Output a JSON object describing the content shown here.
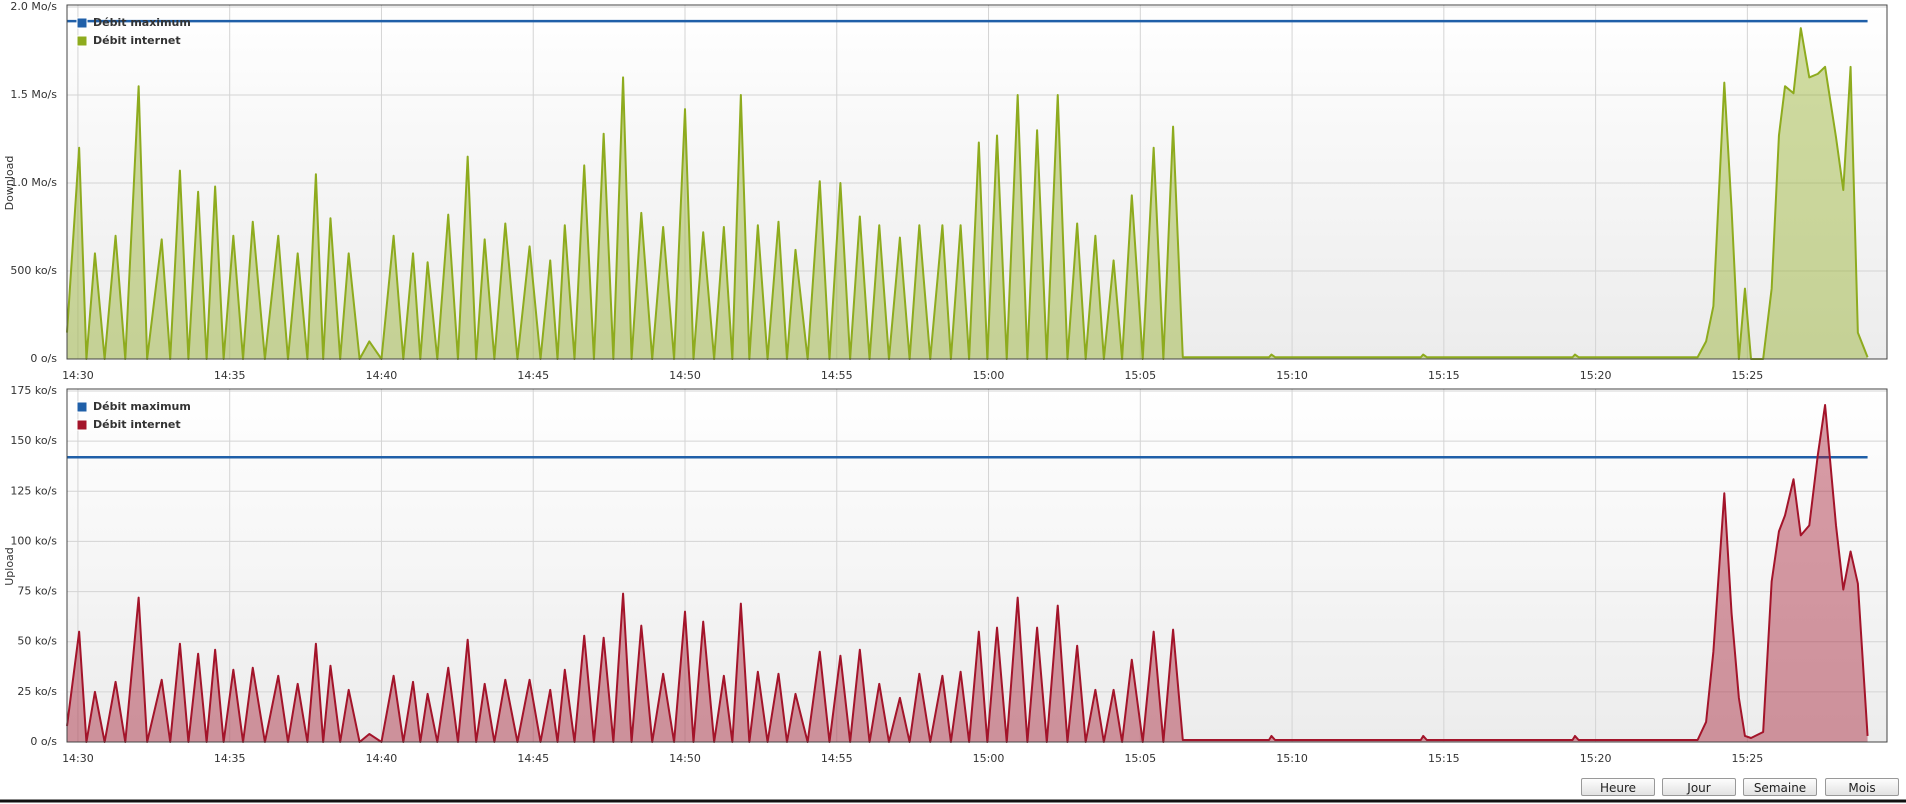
{
  "chart_data": [
    {
      "type": "area",
      "ylabel": "Download",
      "grid": true,
      "legend": "top-left",
      "xlim": [
        869.64,
        929.6
      ],
      "xticks": [
        {
          "value": 870,
          "label": "14:30"
        },
        {
          "value": 875,
          "label": "14:35"
        },
        {
          "value": 880,
          "label": "14:40"
        },
        {
          "value": 885,
          "label": "14:45"
        },
        {
          "value": 890,
          "label": "14:50"
        },
        {
          "value": 895,
          "label": "14:55"
        },
        {
          "value": 900,
          "label": "15:00"
        },
        {
          "value": 905,
          "label": "15:05"
        },
        {
          "value": 910,
          "label": "15:10"
        },
        {
          "value": 915,
          "label": "15:15"
        },
        {
          "value": 920,
          "label": "15:20"
        },
        {
          "value": 925,
          "label": "15:25"
        }
      ],
      "ylim": [
        0,
        2000
      ],
      "yticks": [
        {
          "value": 0,
          "label": "0 o/s"
        },
        {
          "value": 500,
          "label": "500 ko/s"
        },
        {
          "value": 1000,
          "label": "1.0 Mo/s"
        },
        {
          "value": 1500,
          "label": "1.5 Mo/s"
        },
        {
          "value": 2000,
          "label": "2.0 Mo/s"
        }
      ],
      "x": [
        869.64,
        870.04,
        870.28,
        870.56,
        870.88,
        871.24,
        871.56,
        872.0,
        872.28,
        872.76,
        873.04,
        873.36,
        873.64,
        873.96,
        874.24,
        874.52,
        874.8,
        875.12,
        875.44,
        875.76,
        876.16,
        876.6,
        876.92,
        877.24,
        877.56,
        877.84,
        878.08,
        878.32,
        878.64,
        878.92,
        879.28,
        879.6,
        880.0,
        880.4,
        880.72,
        881.04,
        881.28,
        881.52,
        881.84,
        882.2,
        882.52,
        882.84,
        883.12,
        883.4,
        883.72,
        884.08,
        884.48,
        884.88,
        885.24,
        885.56,
        885.8,
        886.04,
        886.36,
        886.68,
        887.0,
        887.32,
        887.64,
        887.96,
        888.24,
        888.56,
        888.92,
        889.28,
        889.64,
        890.0,
        890.28,
        890.6,
        890.96,
        891.28,
        891.56,
        891.84,
        892.12,
        892.4,
        892.72,
        893.08,
        893.36,
        893.64,
        894.04,
        894.44,
        894.76,
        895.12,
        895.44,
        895.76,
        896.08,
        896.4,
        896.72,
        897.08,
        897.4,
        897.72,
        898.08,
        898.48,
        898.76,
        899.08,
        899.36,
        899.68,
        899.96,
        900.28,
        900.6,
        900.96,
        901.28,
        901.6,
        901.92,
        902.28,
        902.6,
        902.92,
        903.2,
        903.52,
        903.8,
        904.12,
        904.4,
        904.72,
        905.08,
        905.44,
        905.76,
        906.08,
        906.4,
        909.24,
        909.32,
        909.44,
        914.24,
        914.32,
        914.44,
        919.24,
        919.32,
        919.44,
        923.36,
        923.64,
        923.88,
        924.24,
        924.48,
        924.72,
        924.92,
        925.12,
        925.52,
        925.8,
        926.04,
        926.24,
        926.52,
        926.76,
        927.04,
        927.32,
        927.56,
        927.92,
        928.16,
        928.4,
        928.64,
        928.96
      ],
      "series": [
        {
          "name": "Débit maximum",
          "type": "line",
          "color": "#1f5fa8",
          "x": [
            869.64,
            928.96
          ],
          "values": [
            1920,
            1920
          ]
        },
        {
          "name": "Débit internet",
          "type": "area",
          "color": "#8eab1e",
          "values": [
            150,
            1200,
            0,
            600,
            0,
            700,
            0,
            1550,
            0,
            680,
            0,
            1070,
            0,
            950,
            0,
            980,
            0,
            700,
            0,
            780,
            0,
            700,
            0,
            600,
            0,
            1050,
            0,
            800,
            0,
            600,
            0,
            100,
            0,
            700,
            0,
            600,
            0,
            550,
            0,
            820,
            0,
            1150,
            0,
            680,
            0,
            770,
            0,
            640,
            0,
            560,
            0,
            760,
            0,
            1100,
            0,
            1280,
            0,
            1600,
            0,
            830,
            0,
            750,
            0,
            1420,
            0,
            720,
            0,
            750,
            0,
            1500,
            0,
            760,
            0,
            780,
            0,
            620,
            0,
            1010,
            0,
            1000,
            0,
            810,
            0,
            760,
            0,
            690,
            0,
            760,
            0,
            760,
            0,
            760,
            0,
            1230,
            0,
            1270,
            0,
            1500,
            0,
            1300,
            0,
            1500,
            0,
            770,
            0,
            700,
            0,
            560,
            0,
            930,
            0,
            1200,
            0,
            1320,
            10,
            10,
            25,
            10,
            10,
            25,
            10,
            10,
            25,
            10,
            10,
            100,
            300,
            1570,
            850,
            0,
            400,
            0,
            0,
            400,
            1270,
            1550,
            1510,
            1880,
            1600,
            1620,
            1660,
            1260,
            960,
            1660,
            150,
            10
          ]
        }
      ]
    },
    {
      "type": "area",
      "ylabel": "Upload",
      "grid": true,
      "legend": "top-left",
      "xlim": [
        869.64,
        929.6
      ],
      "xticks": [
        {
          "value": 870,
          "label": "14:30"
        },
        {
          "value": 875,
          "label": "14:35"
        },
        {
          "value": 880,
          "label": "14:40"
        },
        {
          "value": 885,
          "label": "14:45"
        },
        {
          "value": 890,
          "label": "14:50"
        },
        {
          "value": 895,
          "label": "14:55"
        },
        {
          "value": 900,
          "label": "15:00"
        },
        {
          "value": 905,
          "label": "15:05"
        },
        {
          "value": 910,
          "label": "15:10"
        },
        {
          "value": 915,
          "label": "15:15"
        },
        {
          "value": 920,
          "label": "15:20"
        },
        {
          "value": 925,
          "label": "15:25"
        }
      ],
      "ylim": [
        0,
        175
      ],
      "yticks": [
        {
          "value": 0,
          "label": "0 o/s"
        },
        {
          "value": 25,
          "label": "25 ko/s"
        },
        {
          "value": 50,
          "label": "50 ko/s"
        },
        {
          "value": 75,
          "label": "75 ko/s"
        },
        {
          "value": 100,
          "label": "100 ko/s"
        },
        {
          "value": 125,
          "label": "125 ko/s"
        },
        {
          "value": 150,
          "label": "150 ko/s"
        },
        {
          "value": 175,
          "label": "175 ko/s"
        }
      ],
      "x": [
        869.64,
        870.04,
        870.28,
        870.56,
        870.88,
        871.24,
        871.56,
        872.0,
        872.28,
        872.76,
        873.04,
        873.36,
        873.64,
        873.96,
        874.24,
        874.52,
        874.8,
        875.12,
        875.44,
        875.76,
        876.16,
        876.6,
        876.92,
        877.24,
        877.56,
        877.84,
        878.08,
        878.32,
        878.64,
        878.92,
        879.28,
        879.6,
        880.0,
        880.4,
        880.72,
        881.04,
        881.28,
        881.52,
        881.84,
        882.2,
        882.52,
        882.84,
        883.12,
        883.4,
        883.72,
        884.08,
        884.48,
        884.88,
        885.24,
        885.56,
        885.8,
        886.04,
        886.36,
        886.68,
        887.0,
        887.32,
        887.64,
        887.96,
        888.24,
        888.56,
        888.92,
        889.28,
        889.64,
        890.0,
        890.28,
        890.6,
        890.96,
        891.28,
        891.56,
        891.84,
        892.12,
        892.4,
        892.72,
        893.08,
        893.36,
        893.64,
        894.04,
        894.44,
        894.76,
        895.12,
        895.44,
        895.76,
        896.08,
        896.4,
        896.72,
        897.08,
        897.4,
        897.72,
        898.08,
        898.48,
        898.76,
        899.08,
        899.36,
        899.68,
        899.96,
        900.28,
        900.6,
        900.96,
        901.28,
        901.6,
        901.92,
        902.28,
        902.6,
        902.92,
        903.2,
        903.52,
        903.8,
        904.12,
        904.4,
        904.72,
        905.08,
        905.44,
        905.76,
        906.08,
        906.4,
        909.24,
        909.32,
        909.44,
        914.24,
        914.32,
        914.44,
        919.24,
        919.32,
        919.44,
        923.36,
        923.64,
        923.88,
        924.24,
        924.48,
        924.72,
        924.92,
        925.12,
        925.52,
        925.8,
        926.04,
        926.24,
        926.52,
        926.76,
        927.04,
        927.32,
        927.56,
        927.92,
        928.16,
        928.4,
        928.64,
        928.96
      ],
      "series": [
        {
          "name": "Débit maximum",
          "type": "line",
          "color": "#1f5fa8",
          "x": [
            869.64,
            928.96
          ],
          "values": [
            142,
            142
          ]
        },
        {
          "name": "Débit internet",
          "type": "area",
          "color": "#a3142a",
          "values": [
            8,
            55,
            0,
            25,
            0,
            30,
            0,
            72,
            0,
            31,
            0,
            49,
            0,
            44,
            0,
            46,
            0,
            36,
            0,
            37,
            0,
            33,
            0,
            29,
            0,
            49,
            0,
            38,
            0,
            26,
            0,
            4,
            0,
            33,
            0,
            30,
            0,
            24,
            0,
            37,
            0,
            51,
            0,
            29,
            0,
            31,
            0,
            31,
            0,
            26,
            0,
            36,
            0,
            53,
            0,
            52,
            0,
            74,
            0,
            58,
            0,
            34,
            0,
            65,
            0,
            60,
            0,
            33,
            0,
            69,
            0,
            35,
            0,
            34,
            0,
            24,
            0,
            45,
            0,
            43,
            0,
            46,
            0,
            29,
            0,
            22,
            0,
            34,
            0,
            33,
            0,
            35,
            0,
            55,
            0,
            57,
            0,
            72,
            0,
            57,
            0,
            68,
            0,
            48,
            0,
            26,
            0,
            26,
            0,
            41,
            0,
            55,
            0,
            56,
            1,
            1,
            3,
            1,
            1,
            3,
            1,
            1,
            3,
            1,
            1,
            10,
            45,
            124,
            64,
            22,
            3,
            2,
            5,
            80,
            105,
            113,
            131,
            103,
            108,
            143,
            168,
            108,
            76,
            95,
            79,
            3
          ]
        }
      ]
    }
  ],
  "buttons": [
    "Heure",
    "Jour",
    "Semaine",
    "Mois"
  ]
}
